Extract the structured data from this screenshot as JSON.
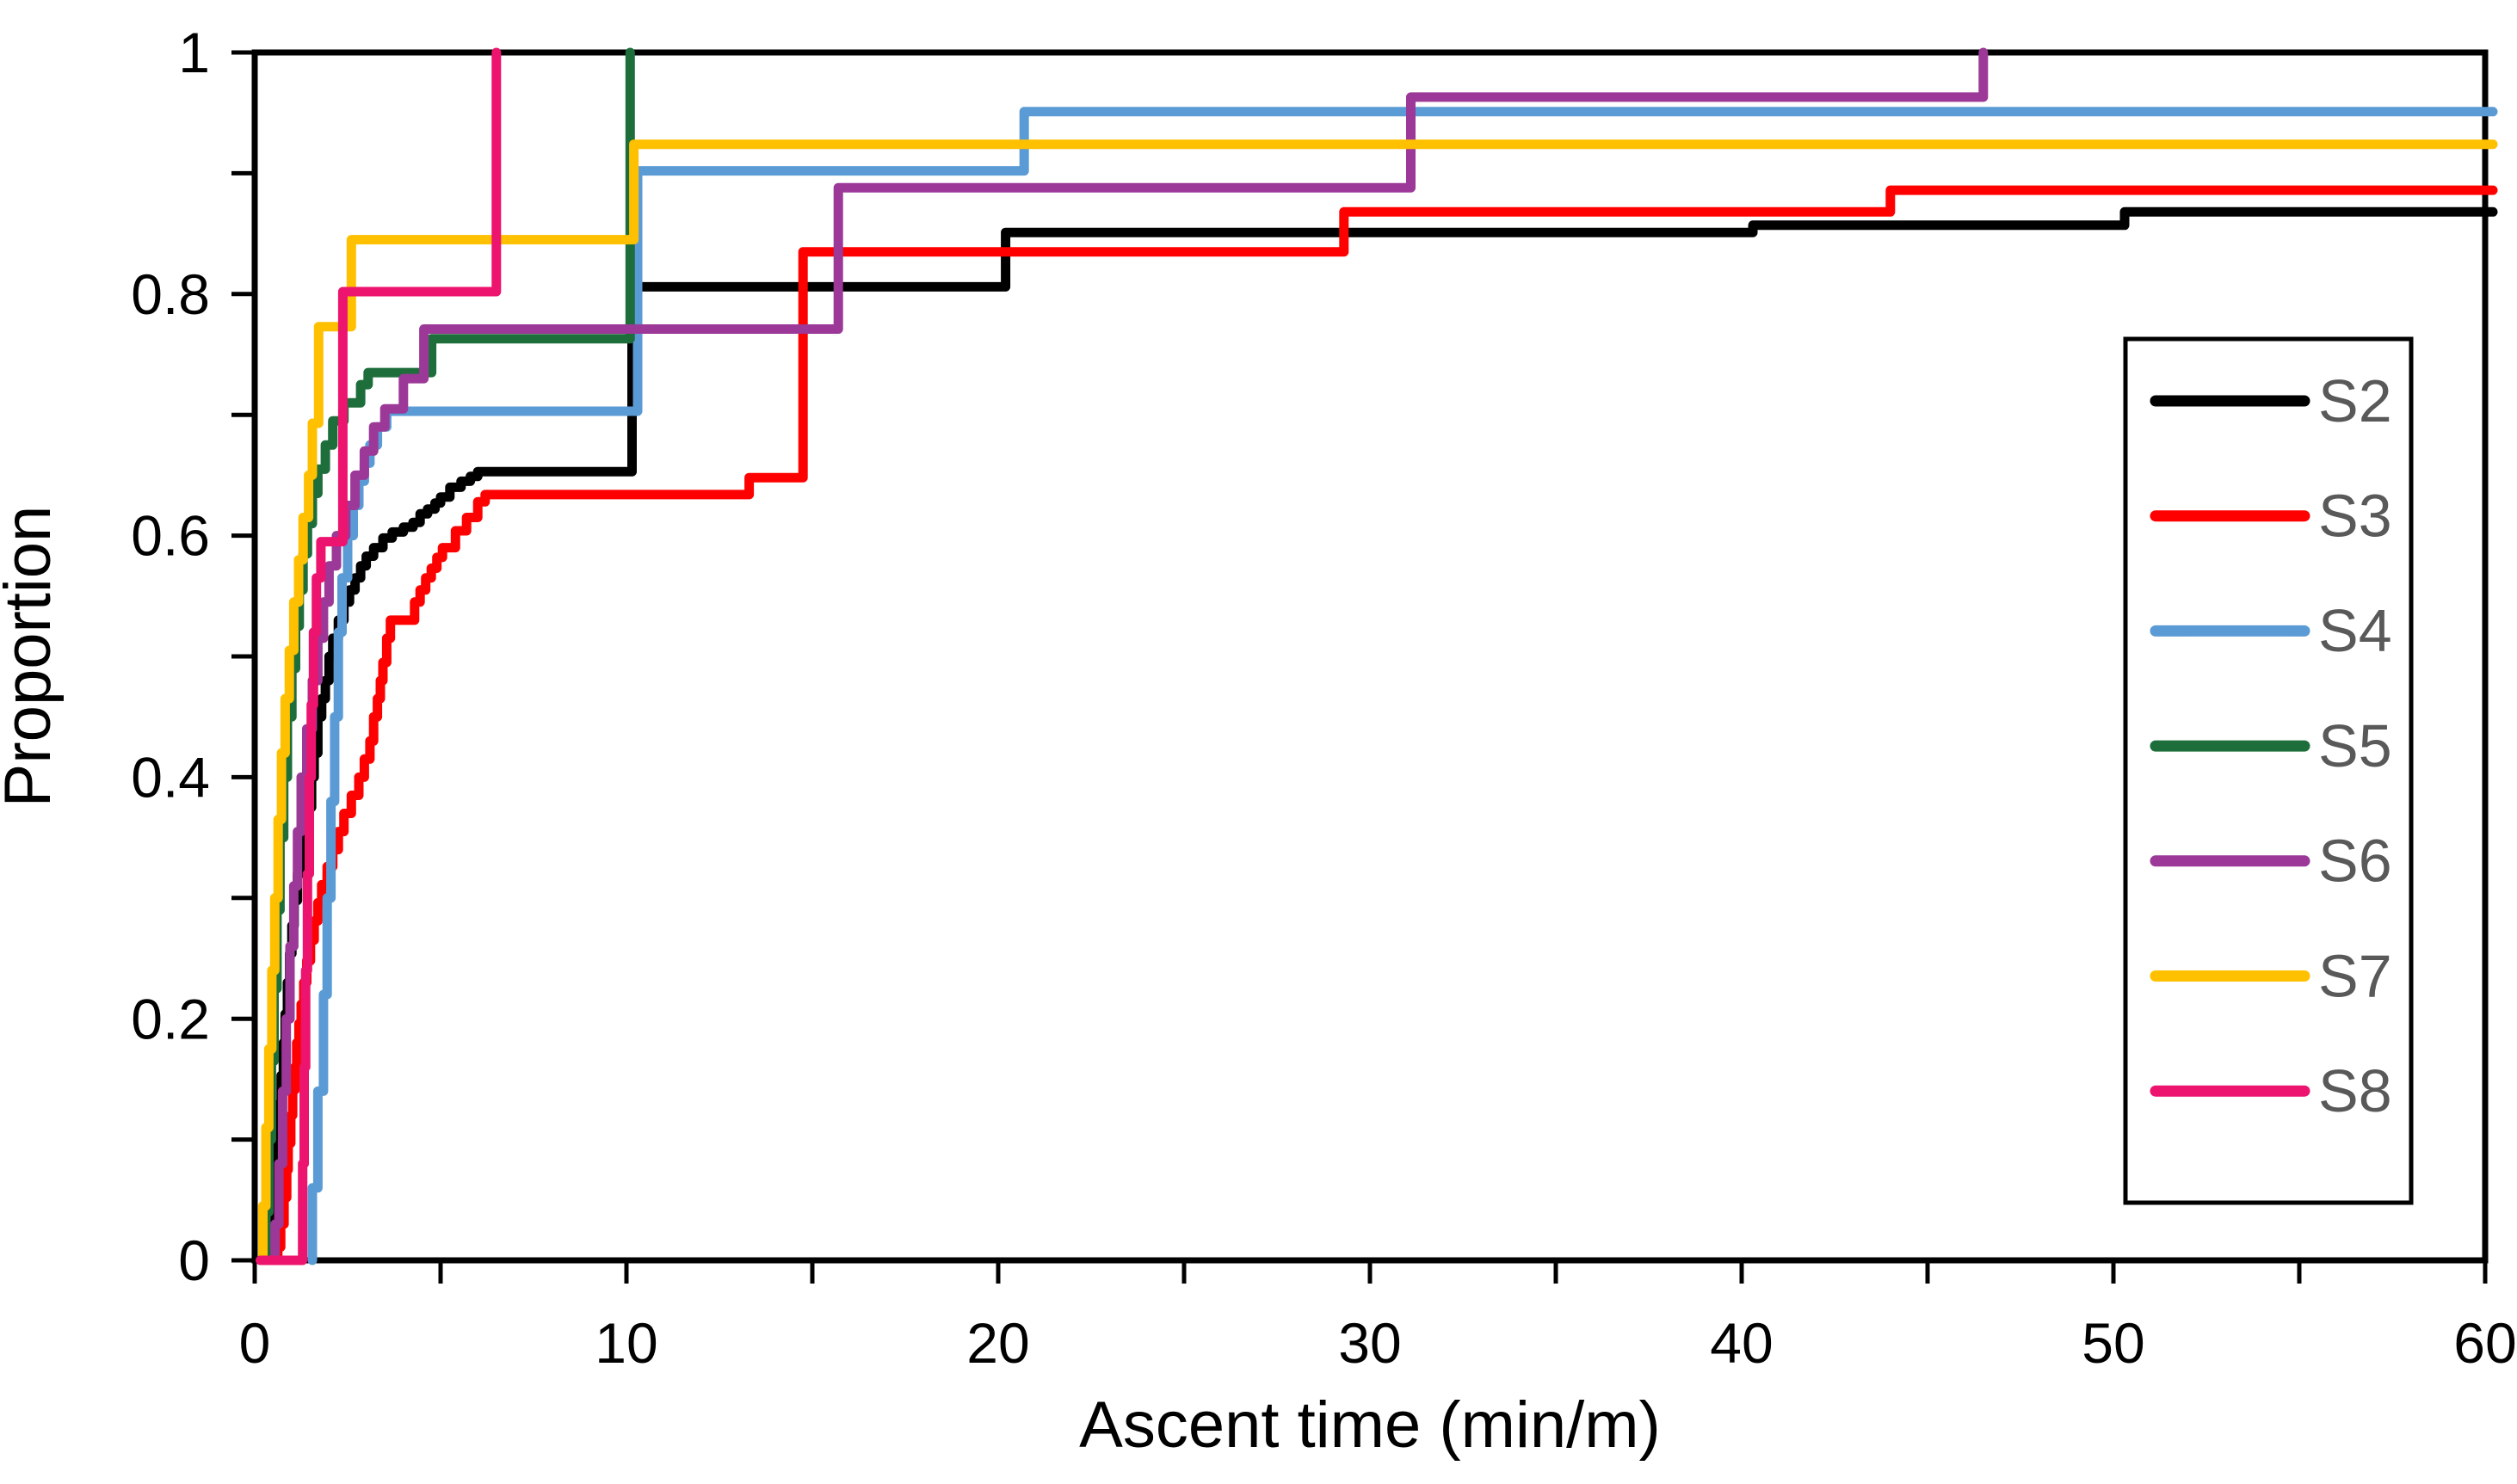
{
  "chart_data": {
    "type": "line",
    "subtype": "step_ecdf",
    "title": "",
    "xlabel": "Ascent time (min/m)",
    "ylabel": "Proportion",
    "xlim": [
      0,
      60
    ],
    "ylim": [
      0,
      1
    ],
    "grid": false,
    "legend_position": "inside-right",
    "axes": {
      "x": {
        "label": "Ascent time (min/m)",
        "min": 0,
        "max": 60,
        "minor_tick_step": 5,
        "label_ticks": [
          0,
          10,
          20,
          30,
          40,
          50,
          60
        ],
        "label_texts": [
          "0",
          "10",
          "20",
          "30",
          "40",
          "50",
          "60"
        ]
      },
      "y": {
        "label": "Proportion",
        "min": 0,
        "max": 1,
        "minor_tick_step": 0.1,
        "label_ticks": [
          0,
          0.2,
          0.4,
          0.6,
          0.8,
          1
        ],
        "label_texts": [
          "0",
          "0.2",
          "0.4",
          "0.6",
          "0.8",
          "1"
        ]
      }
    },
    "colors": {
      "frame": "#000000",
      "tick_label": "#000000",
      "axis_title": "#000000",
      "legend_text": "#595959",
      "legend_border": "#000000",
      "background": "#ffffff"
    },
    "series": [
      {
        "name": "S2",
        "color": "#000000",
        "end": "right",
        "points": [
          [
            0.45,
            0.02
          ],
          [
            0.5,
            0.05
          ],
          [
            0.55,
            0.08
          ],
          [
            0.6,
            0.105
          ],
          [
            0.66,
            0.13
          ],
          [
            0.71,
            0.153
          ],
          [
            0.77,
            0.18
          ],
          [
            0.82,
            0.204
          ],
          [
            0.88,
            0.23
          ],
          [
            0.94,
            0.254
          ],
          [
            1.0,
            0.277
          ],
          [
            1.06,
            0.298
          ],
          [
            1.15,
            0.32
          ],
          [
            1.22,
            0.335
          ],
          [
            1.3,
            0.35
          ],
          [
            1.4,
            0.375
          ],
          [
            1.53,
            0.4
          ],
          [
            1.6,
            0.42
          ],
          [
            1.7,
            0.45
          ],
          [
            1.8,
            0.465
          ],
          [
            1.9,
            0.48
          ],
          [
            2.0,
            0.5
          ],
          [
            2.1,
            0.515
          ],
          [
            2.25,
            0.53
          ],
          [
            2.4,
            0.545
          ],
          [
            2.55,
            0.555
          ],
          [
            2.7,
            0.565
          ],
          [
            2.85,
            0.575
          ],
          [
            3.0,
            0.583
          ],
          [
            3.2,
            0.59
          ],
          [
            3.45,
            0.598
          ],
          [
            3.7,
            0.603
          ],
          [
            4.0,
            0.607
          ],
          [
            4.26,
            0.611
          ],
          [
            4.45,
            0.618
          ],
          [
            4.65,
            0.622
          ],
          [
            4.85,
            0.627
          ],
          [
            5.0,
            0.632
          ],
          [
            5.25,
            0.64
          ],
          [
            5.55,
            0.645
          ],
          [
            5.8,
            0.649
          ],
          [
            6.0,
            0.653
          ],
          [
            10.15,
            0.806
          ],
          [
            20.2,
            0.851
          ],
          [
            40.3,
            0.857
          ],
          [
            50.3,
            0.868
          ]
        ]
      },
      {
        "name": "S3",
        "color": "#FF0000",
        "end": "right",
        "points": [
          [
            0.62,
            0.011
          ],
          [
            0.7,
            0.03
          ],
          [
            0.79,
            0.052
          ],
          [
            0.86,
            0.075
          ],
          [
            0.9,
            0.097
          ],
          [
            0.97,
            0.12
          ],
          [
            1.02,
            0.141
          ],
          [
            1.08,
            0.16
          ],
          [
            1.13,
            0.18
          ],
          [
            1.19,
            0.196
          ],
          [
            1.25,
            0.212
          ],
          [
            1.32,
            0.23
          ],
          [
            1.4,
            0.248
          ],
          [
            1.5,
            0.265
          ],
          [
            1.6,
            0.281
          ],
          [
            1.7,
            0.296
          ],
          [
            1.8,
            0.311
          ],
          [
            1.95,
            0.326
          ],
          [
            2.1,
            0.34
          ],
          [
            2.25,
            0.355
          ],
          [
            2.4,
            0.37
          ],
          [
            2.6,
            0.385
          ],
          [
            2.8,
            0.4
          ],
          [
            2.95,
            0.415
          ],
          [
            3.1,
            0.43
          ],
          [
            3.2,
            0.45
          ],
          [
            3.3,
            0.465
          ],
          [
            3.38,
            0.48
          ],
          [
            3.45,
            0.495
          ],
          [
            3.55,
            0.515
          ],
          [
            3.65,
            0.53
          ],
          [
            4.3,
            0.545
          ],
          [
            4.45,
            0.555
          ],
          [
            4.6,
            0.565
          ],
          [
            4.75,
            0.573
          ],
          [
            4.9,
            0.582
          ],
          [
            5.05,
            0.59
          ],
          [
            5.4,
            0.604
          ],
          [
            5.7,
            0.615
          ],
          [
            6.0,
            0.628
          ],
          [
            6.2,
            0.634
          ],
          [
            13.3,
            0.648
          ],
          [
            14.75,
            0.835
          ],
          [
            29.3,
            0.868
          ],
          [
            44.0,
            0.886
          ]
        ]
      },
      {
        "name": "S4",
        "color": "#5B9BD5",
        "end": "right",
        "points": [
          [
            1.55,
            0.06
          ],
          [
            1.7,
            0.14
          ],
          [
            1.85,
            0.22
          ],
          [
            1.95,
            0.3
          ],
          [
            2.05,
            0.38
          ],
          [
            2.15,
            0.45
          ],
          [
            2.25,
            0.52
          ],
          [
            2.35,
            0.565
          ],
          [
            2.5,
            0.6
          ],
          [
            2.65,
            0.625
          ],
          [
            2.8,
            0.645
          ],
          [
            2.95,
            0.66
          ],
          [
            3.1,
            0.675
          ],
          [
            3.3,
            0.69
          ],
          [
            3.55,
            0.703
          ],
          [
            10.3,
            0.902
          ],
          [
            20.7,
            0.951
          ]
        ]
      },
      {
        "name": "S5",
        "color": "#1E6E3C",
        "end": "top",
        "points": [
          [
            0.3,
            0.04
          ],
          [
            0.38,
            0.1
          ],
          [
            0.45,
            0.165
          ],
          [
            0.52,
            0.225
          ],
          [
            0.6,
            0.29
          ],
          [
            0.68,
            0.35
          ],
          [
            0.78,
            0.4
          ],
          [
            0.88,
            0.45
          ],
          [
            1.0,
            0.49
          ],
          [
            1.1,
            0.525
          ],
          [
            1.2,
            0.555
          ],
          [
            1.3,
            0.585
          ],
          [
            1.42,
            0.61
          ],
          [
            1.55,
            0.635
          ],
          [
            1.7,
            0.655
          ],
          [
            1.9,
            0.675
          ],
          [
            2.1,
            0.695
          ],
          [
            2.4,
            0.71
          ],
          [
            2.85,
            0.725
          ],
          [
            3.05,
            0.735
          ],
          [
            4.76,
            0.763
          ],
          [
            10.1,
            1.0
          ]
        ]
      },
      {
        "name": "S6",
        "color": "#9C3897",
        "end": "top",
        "points": [
          [
            0.55,
            0.03
          ],
          [
            0.65,
            0.08
          ],
          [
            0.75,
            0.14
          ],
          [
            0.85,
            0.2
          ],
          [
            0.95,
            0.26
          ],
          [
            1.05,
            0.31
          ],
          [
            1.15,
            0.355
          ],
          [
            1.25,
            0.4
          ],
          [
            1.4,
            0.44
          ],
          [
            1.55,
            0.48
          ],
          [
            1.7,
            0.515
          ],
          [
            1.85,
            0.545
          ],
          [
            2.0,
            0.575
          ],
          [
            2.2,
            0.6
          ],
          [
            2.45,
            0.625
          ],
          [
            2.7,
            0.65
          ],
          [
            2.95,
            0.67
          ],
          [
            3.2,
            0.69
          ],
          [
            3.5,
            0.705
          ],
          [
            4.0,
            0.73
          ],
          [
            4.55,
            0.771
          ],
          [
            15.7,
            0.888
          ],
          [
            31.1,
            0.963
          ],
          [
            46.5,
            1.0
          ]
        ]
      },
      {
        "name": "S7",
        "color": "#FFC000",
        "end": "right",
        "points": [
          [
            0.22,
            0.045
          ],
          [
            0.3,
            0.11
          ],
          [
            0.38,
            0.175
          ],
          [
            0.46,
            0.24
          ],
          [
            0.54,
            0.3
          ],
          [
            0.63,
            0.365
          ],
          [
            0.72,
            0.42
          ],
          [
            0.82,
            0.465
          ],
          [
            0.93,
            0.505
          ],
          [
            1.05,
            0.545
          ],
          [
            1.18,
            0.58
          ],
          [
            1.3,
            0.615
          ],
          [
            1.45,
            0.65
          ],
          [
            1.55,
            0.693
          ],
          [
            1.72,
            0.773
          ],
          [
            2.6,
            0.845
          ],
          [
            10.2,
            0.924
          ]
        ]
      },
      {
        "name": "S8",
        "color": "#EC146E",
        "end": "top",
        "points": [
          [
            0.15,
            0.0
          ],
          [
            1.29,
            0.08
          ],
          [
            1.33,
            0.16
          ],
          [
            1.37,
            0.24
          ],
          [
            1.42,
            0.32
          ],
          [
            1.47,
            0.4
          ],
          [
            1.52,
            0.46
          ],
          [
            1.58,
            0.52
          ],
          [
            1.66,
            0.565
          ],
          [
            1.78,
            0.595
          ],
          [
            2.37,
            0.802
          ],
          [
            6.5,
            1.0
          ]
        ]
      }
    ],
    "legend": {
      "entries": [
        {
          "label": "S2",
          "color": "#000000"
        },
        {
          "label": "S3",
          "color": "#FF0000"
        },
        {
          "label": "S4",
          "color": "#5B9BD5"
        },
        {
          "label": "S5",
          "color": "#1E6E3C"
        },
        {
          "label": "S6",
          "color": "#9C3897"
        },
        {
          "label": "S7",
          "color": "#FFC000"
        },
        {
          "label": "S8",
          "color": "#EC146E"
        }
      ]
    }
  }
}
